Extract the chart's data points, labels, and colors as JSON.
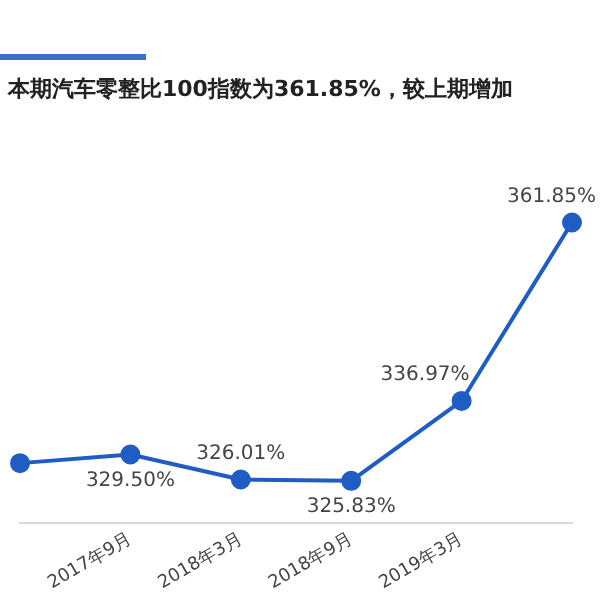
{
  "chart_data": {
    "type": "line",
    "title": "本期汽车零整比100指数为361.85%，较上期增加",
    "categories": [
      null,
      "2017年9月",
      "2018年3月",
      "2018年9月",
      "2019年3月",
      null
    ],
    "series": [
      {
        "color": "#1f5cc4",
        "values": [
          328.3,
          329.5,
          326.01,
          325.83,
          336.97,
          361.85
        ],
        "value_labels": [
          null,
          "329.50%",
          "326.01%",
          "325.83%",
          "336.97%",
          "361.85%"
        ]
      }
    ],
    "marker": "circle",
    "legend": false,
    "grid": false,
    "tick_labels": "x"
  }
}
